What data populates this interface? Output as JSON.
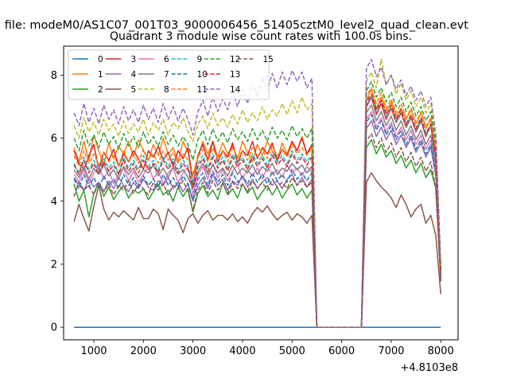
{
  "figure": {
    "suptitle": "n file: modeM0/AS1C07_001T03_9000006456_51405cztM0_level2_quad_clean.evt",
    "offset_label": "+4.8103e8"
  },
  "chart_data": {
    "type": "line",
    "title": "Quadrant 3 module wise count rates with 100.0s bins.",
    "xlabel": "",
    "ylabel": "",
    "xlim": [
      390,
      8350
    ],
    "ylim": [
      -0.4,
      8.92
    ],
    "xticks": [
      1000,
      2000,
      3000,
      4000,
      5000,
      6000,
      7000,
      8000
    ],
    "yticks": [
      0,
      2,
      4,
      6,
      8
    ],
    "grid": false,
    "legend_position": "top-left",
    "legend_columns": 6,
    "x": [
      600,
      700,
      800,
      900,
      1000,
      1100,
      1200,
      1300,
      1400,
      1500,
      1600,
      1700,
      1800,
      1900,
      2000,
      2100,
      2200,
      2300,
      2400,
      2500,
      2600,
      2700,
      2800,
      2900,
      3000,
      3100,
      3200,
      3300,
      3400,
      3500,
      3600,
      3700,
      3800,
      3900,
      4000,
      4100,
      4200,
      4300,
      4400,
      4500,
      4600,
      4700,
      4800,
      4900,
      5000,
      5100,
      5200,
      5300,
      5400,
      5500,
      6400,
      6500,
      6600,
      6700,
      6800,
      6900,
      7000,
      7100,
      7200,
      7300,
      7400,
      7500,
      7600,
      7700,
      7800,
      7900,
      8000
    ],
    "series": [
      {
        "name": "0",
        "color": "#1f77b4",
        "dash": "solid",
        "values": [
          0,
          0,
          0,
          0,
          0,
          0,
          0,
          0,
          0,
          0,
          0,
          0,
          0,
          0,
          0,
          0,
          0,
          0,
          0,
          0,
          0,
          0,
          0,
          0,
          0,
          0,
          0,
          0,
          0,
          0,
          0,
          0,
          0,
          0,
          0,
          0,
          0,
          0,
          0,
          0,
          0,
          0,
          0,
          0,
          0,
          0,
          0,
          0,
          0,
          0,
          0,
          0,
          0,
          0,
          0,
          0,
          0,
          0,
          0,
          0,
          0,
          0,
          0,
          0,
          0,
          0,
          0
        ]
      },
      {
        "name": "1",
        "color": "#ff7f0e",
        "dash": "solid",
        "values": [
          5.7,
          5.25,
          5.9,
          5.3,
          6.1,
          5.6,
          5.15,
          5.85,
          5.35,
          5.75,
          5.5,
          5.9,
          5.4,
          5.95,
          5.6,
          5.3,
          5.8,
          5.45,
          6.0,
          5.5,
          5.7,
          5.25,
          5.9,
          5.55,
          4.8,
          5.4,
          5.9,
          5.5,
          5.9,
          5.4,
          5.85,
          5.5,
          5.75,
          5.35,
          5.9,
          5.55,
          5.25,
          5.8,
          5.45,
          5.9,
          5.6,
          5.3,
          5.85,
          5.5,
          5.9,
          5.6,
          6.05,
          5.5,
          5.7,
          0,
          0,
          7.2,
          7.55,
          6.95,
          7.3,
          6.85,
          7.15,
          6.7,
          6.95,
          6.6,
          6.9,
          6.45,
          6.8,
          6.3,
          6.6,
          5.4,
          1.8
        ]
      },
      {
        "name": "2",
        "color": "#2ca02c",
        "dash": "solid",
        "values": [
          4.55,
          4.0,
          4.35,
          3.5,
          4.25,
          4.6,
          4.15,
          4.45,
          4.05,
          4.3,
          4.5,
          4.1,
          4.35,
          4.25,
          4.4,
          4.05,
          4.3,
          4.55,
          4.2,
          4.35,
          4.0,
          4.45,
          4.15,
          4.4,
          3.65,
          4.25,
          4.5,
          4.15,
          4.35,
          4.05,
          4.6,
          4.2,
          4.4,
          4.1,
          4.55,
          4.25,
          4.45,
          4.05,
          4.3,
          4.5,
          4.2,
          4.45,
          4.1,
          4.35,
          4.55,
          4.2,
          4.4,
          4.1,
          4.35,
          0,
          0,
          5.7,
          5.95,
          5.5,
          5.8,
          5.4,
          5.6,
          5.2,
          5.45,
          5.05,
          5.3,
          4.9,
          5.2,
          4.75,
          5.0,
          4.4,
          1.5
        ]
      },
      {
        "name": "3",
        "color": "#d62728",
        "dash": "solid",
        "values": [
          5.6,
          5.2,
          5.0,
          5.45,
          5.8,
          5.0,
          5.55,
          5.3,
          5.65,
          5.1,
          5.5,
          5.25,
          5.6,
          5.35,
          5.0,
          5.6,
          5.4,
          5.75,
          5.3,
          5.55,
          5.1,
          5.6,
          5.35,
          5.7,
          4.5,
          5.45,
          5.8,
          5.3,
          5.9,
          5.25,
          5.6,
          5.4,
          5.85,
          5.2,
          5.6,
          5.45,
          5.9,
          5.35,
          5.7,
          5.5,
          5.85,
          5.3,
          5.65,
          5.45,
          5.9,
          5.6,
          6.0,
          5.5,
          5.8,
          0,
          0,
          7.0,
          7.3,
          6.75,
          7.1,
          6.6,
          6.95,
          6.5,
          6.8,
          6.35,
          6.65,
          6.2,
          6.55,
          6.05,
          6.4,
          5.3,
          1.55
        ]
      },
      {
        "name": "4",
        "color": "#9467bd",
        "dash": "solid",
        "values": [
          4.75,
          4.5,
          4.35,
          4.7,
          4.45,
          4.6,
          4.3,
          4.65,
          4.4,
          4.75,
          4.5,
          4.3,
          4.6,
          4.4,
          4.7,
          4.45,
          4.35,
          4.65,
          4.5,
          4.75,
          4.4,
          4.6,
          4.3,
          4.55,
          4.0,
          4.5,
          4.75,
          4.4,
          4.85,
          4.5,
          4.7,
          4.35,
          4.65,
          4.5,
          4.8,
          4.45,
          4.7,
          4.4,
          4.6,
          4.75,
          4.5,
          4.65,
          4.4,
          4.7,
          4.85,
          4.5,
          4.75,
          4.45,
          4.7,
          0,
          0,
          6.3,
          6.55,
          6.05,
          6.35,
          5.95,
          6.25,
          5.8,
          6.1,
          5.7,
          6.0,
          5.55,
          5.85,
          5.4,
          5.7,
          4.8,
          1.6
        ]
      },
      {
        "name": "5",
        "color": "#8c564b",
        "dash": "solid",
        "values": [
          3.35,
          3.9,
          3.45,
          3.05,
          3.85,
          4.5,
          3.75,
          3.4,
          3.65,
          3.5,
          3.7,
          3.55,
          3.4,
          3.8,
          3.45,
          3.45,
          3.75,
          3.6,
          3.1,
          3.75,
          3.55,
          3.4,
          3.0,
          3.45,
          3.6,
          3.3,
          3.55,
          3.7,
          3.4,
          3.55,
          3.55,
          3.4,
          3.6,
          3.35,
          3.5,
          3.3,
          3.6,
          3.8,
          3.65,
          3.85,
          3.6,
          3.4,
          3.55,
          3.65,
          3.4,
          3.6,
          3.5,
          3.3,
          3.55,
          0,
          0,
          4.6,
          4.9,
          4.65,
          4.45,
          4.3,
          4.1,
          3.8,
          4.2,
          3.9,
          3.5,
          3.75,
          3.9,
          3.3,
          3.55,
          2.9,
          1.05
        ]
      },
      {
        "name": "6",
        "color": "#e377c2",
        "dash": "solid",
        "values": [
          4.85,
          4.6,
          5.0,
          4.55,
          4.9,
          5.1,
          4.7,
          5.0,
          4.55,
          4.85,
          5.05,
          4.65,
          4.95,
          4.6,
          4.85,
          5.1,
          4.7,
          4.95,
          4.55,
          4.9,
          5.05,
          4.6,
          4.9,
          5.1,
          4.2,
          4.85,
          5.1,
          4.7,
          5.2,
          4.75,
          5.0,
          4.65,
          4.95,
          5.15,
          4.7,
          5.0,
          4.8,
          5.05,
          4.7,
          5.1,
          4.85,
          5.0,
          4.75,
          5.15,
          4.9,
          5.05,
          4.8,
          5.1,
          4.9,
          0,
          0,
          6.6,
          6.85,
          6.35,
          6.65,
          6.2,
          6.5,
          6.05,
          6.35,
          5.95,
          6.25,
          5.8,
          6.1,
          5.65,
          5.95,
          5.0,
          1.65
        ]
      },
      {
        "name": "7",
        "color": "#7f7f7f",
        "dash": "solid",
        "values": [
          5.0,
          4.75,
          5.1,
          4.7,
          5.05,
          4.85,
          5.15,
          4.8,
          5.0,
          4.7,
          5.1,
          4.85,
          5.05,
          4.75,
          5.0,
          4.9,
          5.15,
          4.8,
          5.05,
          4.75,
          5.1,
          4.85,
          5.0,
          4.75,
          4.4,
          4.95,
          5.2,
          4.85,
          5.15,
          4.9,
          5.05,
          4.8,
          5.15,
          4.85,
          5.05,
          4.9,
          5.15,
          4.85,
          5.1,
          4.95,
          5.2,
          4.85,
          5.05,
          4.95,
          5.2,
          5.0,
          5.15,
          4.9,
          5.1,
          0,
          0,
          6.8,
          7.05,
          6.55,
          6.85,
          6.4,
          6.7,
          6.25,
          6.55,
          6.1,
          6.4,
          5.95,
          6.25,
          5.8,
          6.1,
          5.15,
          1.7
        ]
      },
      {
        "name": "8",
        "color": "#bcbd22",
        "dash": "dashed",
        "values": [
          6.4,
          6.0,
          6.65,
          6.2,
          6.5,
          6.1,
          6.6,
          6.25,
          6.45,
          6.05,
          6.55,
          6.15,
          6.45,
          6.2,
          6.6,
          6.1,
          6.5,
          6.25,
          6.6,
          6.1,
          6.5,
          6.3,
          6.65,
          6.2,
          5.9,
          6.45,
          6.7,
          6.3,
          6.8,
          6.4,
          6.65,
          6.35,
          6.75,
          6.45,
          6.9,
          6.5,
          6.8,
          6.55,
          7.0,
          6.6,
          6.9,
          6.7,
          7.1,
          6.75,
          7.2,
          6.8,
          7.3,
          6.9,
          7.1,
          0,
          0,
          7.8,
          8.1,
          7.6,
          8.5,
          7.7,
          8.0,
          7.4,
          7.75,
          7.2,
          7.5,
          7.0,
          7.3,
          6.8,
          7.1,
          5.9,
          1.9
        ]
      },
      {
        "name": "9",
        "color": "#17becf",
        "dash": "dashed",
        "values": [
          5.2,
          4.9,
          5.4,
          5.0,
          5.3,
          4.95,
          5.35,
          5.05,
          5.25,
          4.9,
          5.4,
          5.05,
          5.3,
          5.0,
          5.45,
          5.1,
          5.3,
          5.0,
          5.4,
          5.1,
          5.35,
          5.0,
          5.3,
          5.1,
          4.6,
          5.2,
          5.45,
          5.05,
          5.5,
          5.15,
          5.4,
          5.05,
          5.5,
          5.2,
          5.4,
          5.1,
          5.5,
          5.2,
          5.45,
          5.15,
          5.55,
          5.25,
          5.45,
          5.2,
          5.6,
          5.3,
          5.5,
          5.25,
          5.5,
          0,
          0,
          7.1,
          7.35,
          6.85,
          7.2,
          6.7,
          7.0,
          6.55,
          6.85,
          6.4,
          6.7,
          6.25,
          6.6,
          6.1,
          6.4,
          5.4,
          1.75
        ]
      },
      {
        "name": "10",
        "color": "#1f77b4",
        "dash": "dashed",
        "values": [
          4.7,
          4.4,
          4.85,
          4.45,
          4.75,
          4.4,
          4.8,
          4.5,
          4.7,
          4.4,
          4.85,
          4.5,
          4.75,
          4.45,
          4.8,
          4.5,
          4.7,
          4.45,
          4.85,
          4.5,
          4.75,
          4.45,
          4.8,
          4.55,
          4.05,
          4.7,
          4.9,
          4.5,
          4.95,
          4.6,
          4.85,
          4.5,
          4.9,
          4.6,
          4.8,
          4.55,
          4.9,
          4.6,
          4.85,
          4.55,
          4.95,
          4.65,
          4.85,
          4.6,
          5.0,
          4.7,
          4.9,
          4.65,
          4.9,
          0,
          0,
          6.5,
          6.75,
          6.25,
          6.55,
          6.1,
          6.4,
          5.95,
          6.25,
          5.8,
          6.1,
          5.65,
          5.95,
          5.5,
          5.8,
          4.9,
          1.6
        ]
      },
      {
        "name": "11",
        "color": "#ff7f0e",
        "dash": "dashed",
        "values": [
          5.45,
          5.1,
          5.6,
          5.2,
          5.5,
          5.15,
          5.55,
          5.25,
          5.45,
          5.1,
          5.6,
          5.25,
          5.5,
          5.2,
          5.65,
          5.3,
          5.5,
          5.2,
          5.6,
          5.3,
          5.55,
          5.2,
          5.5,
          5.3,
          4.85,
          5.4,
          5.65,
          5.25,
          5.7,
          5.35,
          5.6,
          5.25,
          5.7,
          5.4,
          5.6,
          5.3,
          5.7,
          5.4,
          5.65,
          5.35,
          5.75,
          5.45,
          5.65,
          5.4,
          5.8,
          5.5,
          5.7,
          5.45,
          5.7,
          0,
          0,
          7.35,
          7.6,
          7.1,
          7.45,
          6.95,
          7.25,
          6.8,
          7.1,
          6.65,
          6.95,
          6.5,
          6.85,
          6.35,
          6.65,
          5.6,
          1.8
        ]
      },
      {
        "name": "12",
        "color": "#2ca02c",
        "dash": "dashed",
        "values": [
          6.0,
          5.6,
          6.25,
          5.75,
          6.1,
          5.7,
          6.2,
          5.8,
          6.05,
          5.65,
          6.15,
          5.75,
          6.05,
          5.7,
          6.2,
          5.8,
          6.05,
          5.75,
          6.2,
          5.8,
          6.1,
          5.75,
          6.05,
          5.8,
          5.3,
          5.95,
          6.25,
          5.8,
          6.3,
          5.9,
          6.2,
          5.85,
          6.3,
          5.95,
          6.2,
          5.9,
          6.3,
          5.95,
          6.25,
          5.9,
          6.35,
          6.0,
          6.25,
          5.95,
          6.4,
          6.05,
          6.3,
          6.0,
          6.3,
          0,
          0,
          7.5,
          7.8,
          7.3,
          7.6,
          7.15,
          7.45,
          7.0,
          7.3,
          6.85,
          7.15,
          6.7,
          7.0,
          6.55,
          6.85,
          5.8,
          1.85
        ]
      },
      {
        "name": "13",
        "color": "#d62728",
        "dash": "dashed",
        "values": [
          5.15,
          4.85,
          5.3,
          4.9,
          5.2,
          4.85,
          5.25,
          4.95,
          5.15,
          4.85,
          5.3,
          4.95,
          5.2,
          4.9,
          5.3,
          5.0,
          5.2,
          4.9,
          5.3,
          5.0,
          5.25,
          4.9,
          5.2,
          5.0,
          4.45,
          5.1,
          5.35,
          4.95,
          5.4,
          5.05,
          5.3,
          4.95,
          5.4,
          5.1,
          5.3,
          5.0,
          5.4,
          5.1,
          5.35,
          5.05,
          5.45,
          5.15,
          5.35,
          5.1,
          5.5,
          5.2,
          5.4,
          5.15,
          5.4,
          0,
          0,
          7.15,
          7.4,
          6.9,
          7.2,
          6.75,
          7.05,
          6.6,
          6.9,
          6.45,
          6.75,
          6.3,
          6.65,
          6.15,
          6.45,
          5.45,
          1.75
        ]
      },
      {
        "name": "14",
        "color": "#9467bd",
        "dash": "dashed",
        "values": [
          6.8,
          6.4,
          7.1,
          6.5,
          6.95,
          6.45,
          7.05,
          6.6,
          6.9,
          6.45,
          7.0,
          6.55,
          6.9,
          6.5,
          7.05,
          6.6,
          6.95,
          6.5,
          7.1,
          6.6,
          7.0,
          6.55,
          6.95,
          6.6,
          6.1,
          6.85,
          7.2,
          6.7,
          7.3,
          6.85,
          7.25,
          6.9,
          7.45,
          7.0,
          7.55,
          7.1,
          7.75,
          7.3,
          7.95,
          7.5,
          8.05,
          7.6,
          8.1,
          7.7,
          8.15,
          7.8,
          8.1,
          7.6,
          7.9,
          0,
          0,
          8.2,
          8.5,
          7.95,
          8.25,
          7.7,
          8.0,
          7.55,
          7.85,
          7.35,
          7.65,
          7.2,
          7.5,
          7.0,
          7.3,
          6.1,
          2.0
        ]
      },
      {
        "name": "15",
        "color": "#8c564b",
        "dash": "dashed",
        "values": [
          4.15,
          4.6,
          4.35,
          4.5,
          4.2,
          4.6,
          4.3,
          4.55,
          4.2,
          4.5,
          4.35,
          4.65,
          4.25,
          4.55,
          4.4,
          4.2,
          4.6,
          4.35,
          4.55,
          4.2,
          4.5,
          4.4,
          4.65,
          4.3,
          3.7,
          4.35,
          4.6,
          4.25,
          4.65,
          4.35,
          4.55,
          4.25,
          4.6,
          4.4,
          4.55,
          4.3,
          4.65,
          4.4,
          4.6,
          4.35,
          4.7,
          4.45,
          4.6,
          4.4,
          4.75,
          4.5,
          4.65,
          4.45,
          4.6,
          0,
          0,
          5.9,
          6.15,
          5.7,
          6.0,
          5.55,
          5.85,
          5.4,
          5.7,
          5.25,
          5.55,
          5.1,
          5.4,
          4.95,
          5.25,
          4.4,
          1.45
        ]
      }
    ]
  }
}
